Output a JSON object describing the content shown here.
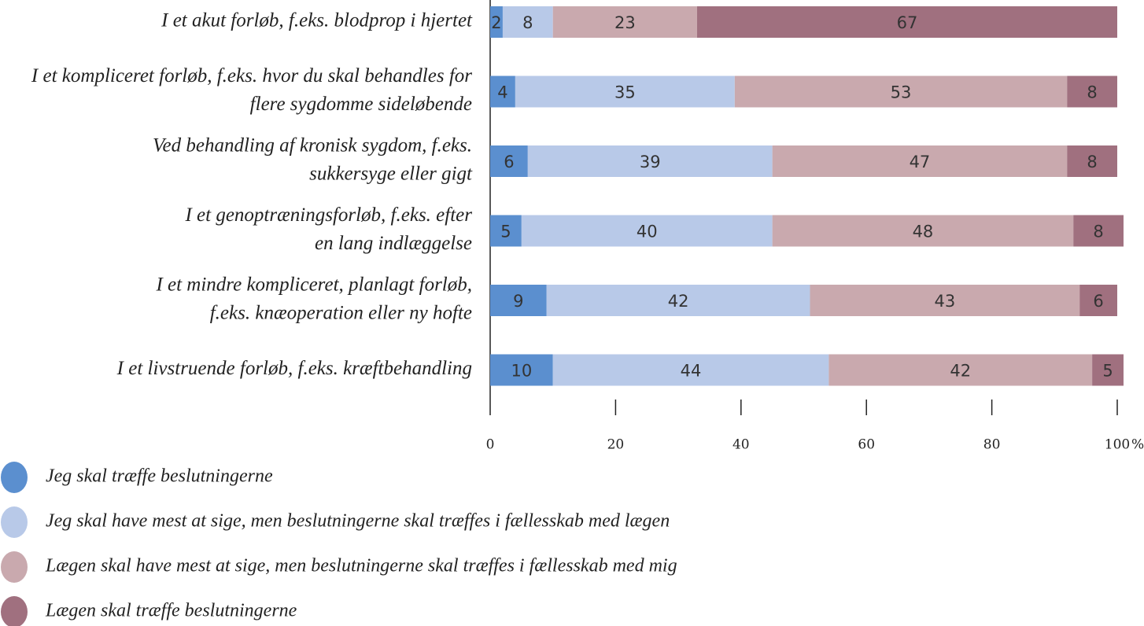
{
  "chart_data": {
    "type": "stacked_barh",
    "categories": [
      [
        "I et akut forløb, f.eks. blodprop i hjertet"
      ],
      [
        "I et kompliceret forløb, f.eks. hvor du skal behandles for",
        "flere sygdomme sideløbende"
      ],
      [
        "Ved behandling af kronisk sygdom, f.eks.",
        "sukkersyge eller gigt"
      ],
      [
        "I et genoptræningsforløb, f.eks. efter",
        "en lang indlæggelse"
      ],
      [
        "I et mindre kompliceret, planlagt forløb,",
        "f.eks. knæoperation eller ny hofte"
      ],
      [
        "I et livstruende forløb, f.eks. kræftbehandling"
      ]
    ],
    "series": [
      {
        "name": "Jeg skal træffe beslutningerne",
        "color": "#5b8fcf",
        "values": [
          2,
          4,
          6,
          5,
          9,
          10
        ]
      },
      {
        "name": "Jeg skal have mest at sige, men beslutningerne skal træffes i fællesskab med lægen",
        "color": "#b8c9e8",
        "values": [
          8,
          35,
          39,
          40,
          42,
          44
        ]
      },
      {
        "name": "Lægen skal have mest at sige, men beslutningerne skal træffes i fællesskab med mig",
        "color": "#c9a9ae",
        "values": [
          23,
          53,
          47,
          48,
          43,
          42
        ]
      },
      {
        "name": "Lægen skal træffe beslutningerne",
        "color": "#a0707f",
        "values": [
          67,
          8,
          8,
          8,
          6,
          5
        ]
      }
    ],
    "xlim": [
      0,
      100
    ],
    "xticks": [
      0,
      20,
      40,
      60,
      80,
      100
    ],
    "xlabel": "%"
  }
}
